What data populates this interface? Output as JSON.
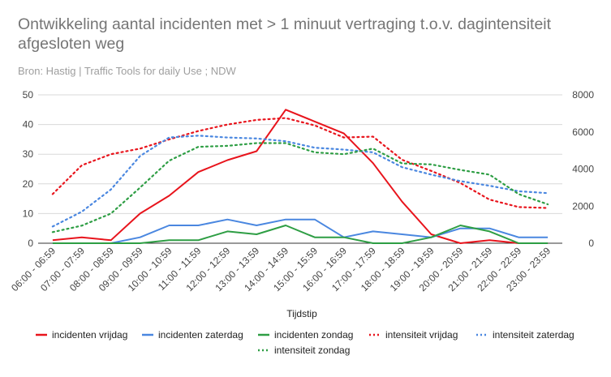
{
  "chart_data": {
    "type": "line",
    "title": "Ontwikkeling aantal incidenten met > 1 minuut vertraging t.o.v. dagintensiteit afgesloten weg",
    "subtitle": "Bron: Hastig | Traffic Tools for daily Use ; NDW",
    "xlabel": "Tijdstip",
    "categories": [
      "06:00 - 06:59",
      "07:00 - 07:59",
      "08:00 - 08:59",
      "09:00 - 09:59",
      "10:00 - 10:59",
      "11:00 - 11:59",
      "12:00 - 12:59",
      "13:00 - 13:59",
      "14:00 - 14:59",
      "15:00 - 15:59",
      "16:00 - 16:59",
      "17:00 - 17:59",
      "18:00 - 18:59",
      "19:00 - 19:59",
      "20:00 - 20:59",
      "21:00 - 21:59",
      "22:00 - 22:59",
      "23:00 - 23:59"
    ],
    "y_left": {
      "range": [
        0,
        50
      ],
      "ticks": [
        0,
        10,
        20,
        30,
        40,
        50
      ]
    },
    "y_right": {
      "range": [
        0,
        8000
      ],
      "ticks": [
        0,
        2000,
        4000,
        6000,
        8000
      ]
    },
    "grid": true,
    "legend_position": "bottom",
    "series": [
      {
        "name": "incidenten vrijdag",
        "axis": "left",
        "color": "#e8141c",
        "dash": false,
        "values": [
          1,
          2,
          1,
          10,
          16,
          24,
          28,
          31,
          45,
          41,
          37,
          27,
          14,
          3,
          0,
          1,
          0,
          0
        ]
      },
      {
        "name": "incidenten zaterdag",
        "axis": "left",
        "color": "#4a87e0",
        "dash": false,
        "values": [
          0,
          0,
          0,
          2,
          6,
          6,
          8,
          6,
          8,
          8,
          2,
          4,
          3,
          2,
          5,
          5,
          2,
          2
        ]
      },
      {
        "name": "incidenten zondag",
        "axis": "left",
        "color": "#2e9e44",
        "dash": false,
        "values": [
          0,
          0,
          0,
          0,
          1,
          1,
          4,
          3,
          6,
          2,
          2,
          0,
          0,
          2,
          6,
          4,
          0,
          0
        ]
      },
      {
        "name": "intensiteit vrijdag",
        "axis": "right",
        "color": "#e8141c",
        "dash": true,
        "values": [
          2650,
          4200,
          4800,
          5100,
          5600,
          6050,
          6400,
          6650,
          6750,
          6350,
          5700,
          5750,
          4500,
          3900,
          3250,
          2350,
          1950,
          1900
        ]
      },
      {
        "name": "intensiteit zaterdag",
        "axis": "right",
        "color": "#4a87e0",
        "dash": true,
        "values": [
          900,
          1700,
          2900,
          4700,
          5700,
          5800,
          5700,
          5650,
          5500,
          5150,
          5050,
          4900,
          4100,
          3700,
          3350,
          3100,
          2800,
          2700
        ]
      },
      {
        "name": "intensiteit zondag",
        "axis": "right",
        "color": "#2e9e44",
        "dash": true,
        "values": [
          600,
          950,
          1600,
          3000,
          4450,
          5200,
          5250,
          5400,
          5400,
          4900,
          4800,
          5100,
          4300,
          4250,
          3950,
          3700,
          2650,
          2100
        ]
      }
    ]
  }
}
